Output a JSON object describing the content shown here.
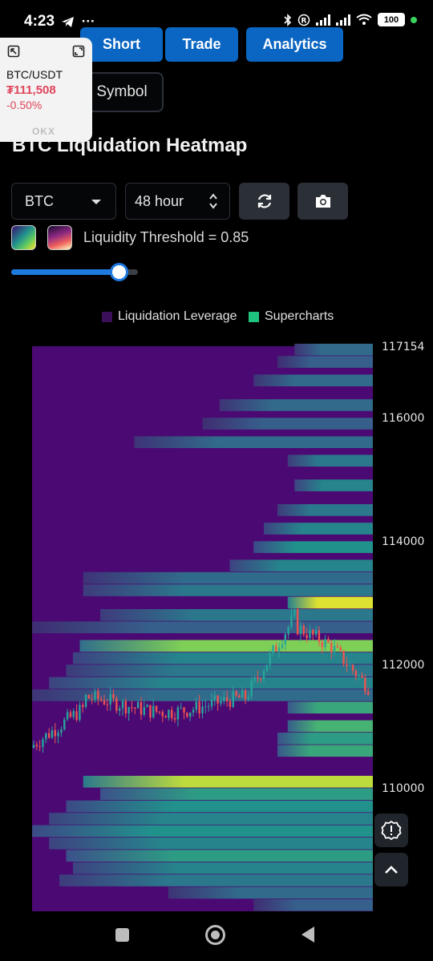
{
  "status_bar": {
    "time": "4:23",
    "left_icons": [
      "telegram-icon",
      "more-dots-icon"
    ],
    "right_icons": [
      "bluetooth-icon",
      "registered-icon",
      "signal-icon",
      "signal-icon",
      "wifi-icon"
    ],
    "battery": "100"
  },
  "nav": {
    "tabs": [
      {
        "label": "Short"
      },
      {
        "label": "Trade"
      },
      {
        "label": "Analytics"
      }
    ],
    "symbol_button": "Symbol"
  },
  "widget": {
    "pair": "BTC/USDT",
    "price": "₮111,508",
    "change": "-0.50%",
    "logo": "OKX",
    "price_color": "#e0455b"
  },
  "page": {
    "title": "BTC Liquidation Heatmap"
  },
  "controls": {
    "coin": "BTC",
    "period": "48 hour",
    "threshold_label": "Liquidity Threshold = 0.85",
    "threshold_value": 0.85,
    "refresh_icon": "refresh-icon",
    "camera_icon": "camera-icon"
  },
  "chart_data": {
    "type": "heatmap",
    "legend": [
      {
        "name": "Liquidation Leverage",
        "color": "#3b0f5a"
      },
      {
        "name": "Supercharts",
        "color": "#1fc27f"
      }
    ],
    "y_ticks": [
      "117154",
      "116000",
      "114000",
      "112000",
      "110000"
    ],
    "ylim": [
      108000,
      117154
    ],
    "colormap": [
      "#440154",
      "#3b528b",
      "#21918c",
      "#5ec962",
      "#fde725"
    ],
    "price_candles_range": [
      110000,
      112900
    ],
    "heat_bands": [
      {
        "price": 117100,
        "start": 0.77,
        "level": 0.35
      },
      {
        "price": 116900,
        "start": 0.72,
        "level": 0.3
      },
      {
        "price": 116600,
        "start": 0.65,
        "level": 0.35
      },
      {
        "price": 116200,
        "start": 0.55,
        "level": 0.35
      },
      {
        "price": 115900,
        "start": 0.5,
        "level": 0.3
      },
      {
        "price": 115600,
        "start": 0.3,
        "level": 0.35
      },
      {
        "price": 115300,
        "start": 0.75,
        "level": 0.4
      },
      {
        "price": 114900,
        "start": 0.77,
        "level": 0.45
      },
      {
        "price": 114500,
        "start": 0.72,
        "level": 0.4
      },
      {
        "price": 114200,
        "start": 0.68,
        "level": 0.45
      },
      {
        "price": 113900,
        "start": 0.65,
        "level": 0.5
      },
      {
        "price": 113600,
        "start": 0.58,
        "level": 0.45
      },
      {
        "price": 113400,
        "start": 0.15,
        "level": 0.35
      },
      {
        "price": 113200,
        "start": 0.15,
        "level": 0.4
      },
      {
        "price": 113000,
        "start": 0.75,
        "level": 0.95
      },
      {
        "price": 112800,
        "start": 0.2,
        "level": 0.4
      },
      {
        "price": 112600,
        "start": 0.0,
        "level": 0.3
      },
      {
        "price": 112300,
        "start": 0.14,
        "level": 0.8
      },
      {
        "price": 112100,
        "start": 0.12,
        "level": 0.45
      },
      {
        "price": 111900,
        "start": 0.1,
        "level": 0.4
      },
      {
        "price": 111700,
        "start": 0.05,
        "level": 0.45
      },
      {
        "price": 111500,
        "start": 0.0,
        "level": 0.35
      },
      {
        "price": 111300,
        "start": 0.75,
        "level": 0.6
      },
      {
        "price": 111000,
        "start": 0.75,
        "level": 0.65
      },
      {
        "price": 110800,
        "start": 0.72,
        "level": 0.55
      },
      {
        "price": 110600,
        "start": 0.72,
        "level": 0.6
      },
      {
        "price": 110100,
        "start": 0.15,
        "level": 0.9
      },
      {
        "price": 109900,
        "start": 0.2,
        "level": 0.55
      },
      {
        "price": 109700,
        "start": 0.1,
        "level": 0.5
      },
      {
        "price": 109500,
        "start": 0.05,
        "level": 0.45
      },
      {
        "price": 109300,
        "start": 0.0,
        "level": 0.5
      },
      {
        "price": 109100,
        "start": 0.05,
        "level": 0.45
      },
      {
        "price": 108900,
        "start": 0.1,
        "level": 0.55
      },
      {
        "price": 108700,
        "start": 0.12,
        "level": 0.45
      },
      {
        "price": 108500,
        "start": 0.08,
        "level": 0.4
      },
      {
        "price": 108300,
        "start": 0.4,
        "level": 0.35
      },
      {
        "price": 108100,
        "start": 0.65,
        "level": 0.3
      }
    ]
  },
  "fab": {
    "settings_icon": "settings-alert-icon",
    "scroll_icon": "chevron-up-icon"
  },
  "system_nav": [
    "recents-icon",
    "home-icon",
    "back-icon"
  ]
}
